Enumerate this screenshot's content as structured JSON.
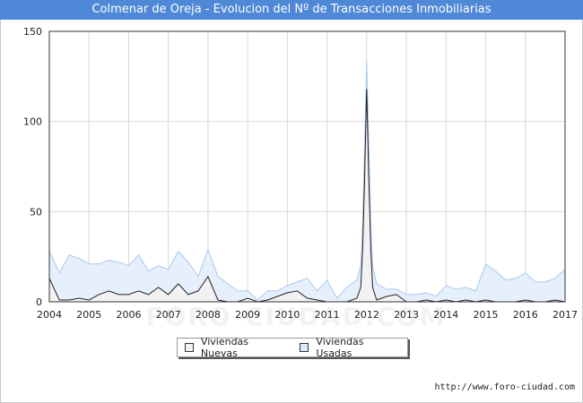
{
  "title": "Colmenar de Oreja - Evolucion del Nº de Transacciones Inmobiliarias",
  "footer": "http://www.foro-ciudad.com",
  "watermark": "FORO-CIUDAD.COM",
  "colors": {
    "title_bar": "#4f88d6",
    "nuevas_fill": "#f2f2f2",
    "nuevas_line": "#222222",
    "usadas_fill": "#e6f0fd",
    "usadas_line": "#a9c9ee",
    "grid": "#d9d9d9"
  },
  "legend": [
    {
      "label": "Viviendas Nuevas",
      "color": "#f2f2f2"
    },
    {
      "label": "Viviendas Usadas",
      "color": "#dfeafb"
    }
  ],
  "chart_data": {
    "type": "area",
    "title": "Colmenar de Oreja - Evolucion del Nº de Transacciones Inmobiliarias",
    "x_ticks": [
      "2004",
      "2005",
      "2006",
      "2007",
      "2008",
      "2009",
      "2010",
      "2011",
      "2012",
      "2013",
      "2014",
      "2015",
      "2016",
      "2017"
    ],
    "y_ticks": [
      "0",
      "50",
      "100",
      "150"
    ],
    "xlim": [
      2004,
      2017
    ],
    "ylim": [
      0,
      150
    ],
    "grid": true,
    "legend_position": "bottom",
    "x": [
      2004.0,
      2004.25,
      2004.5,
      2004.75,
      2005.0,
      2005.25,
      2005.5,
      2005.75,
      2006.0,
      2006.25,
      2006.5,
      2006.75,
      2007.0,
      2007.25,
      2007.5,
      2007.75,
      2008.0,
      2008.25,
      2008.5,
      2008.75,
      2009.0,
      2009.25,
      2009.5,
      2009.75,
      2010.0,
      2010.25,
      2010.5,
      2010.75,
      2011.0,
      2011.25,
      2011.5,
      2011.75,
      2011.85,
      2011.9,
      2011.95,
      2012.0,
      2012.05,
      2012.1,
      2012.15,
      2012.25,
      2012.5,
      2012.75,
      2013.0,
      2013.25,
      2013.5,
      2013.75,
      2014.0,
      2014.25,
      2014.5,
      2014.75,
      2015.0,
      2015.25,
      2015.5,
      2015.75,
      2016.0,
      2016.25,
      2016.5,
      2016.75,
      2017.0
    ],
    "series": [
      {
        "name": "Viviendas Nuevas",
        "values": [
          13,
          1,
          1,
          2,
          1,
          4,
          6,
          4,
          4,
          6,
          4,
          8,
          4,
          10,
          4,
          6,
          14,
          1,
          0,
          0,
          2,
          0,
          1,
          3,
          5,
          6,
          2,
          1,
          0,
          0,
          0,
          2,
          8,
          30,
          70,
          118,
          70,
          30,
          8,
          1,
          3,
          4,
          0,
          0,
          1,
          0,
          1,
          0,
          1,
          0,
          1,
          0,
          0,
          0,
          1,
          0,
          0,
          1,
          0
        ]
      },
      {
        "name": "Viviendas Usadas",
        "values": [
          28,
          16,
          26,
          24,
          21,
          21,
          23,
          22,
          20,
          26,
          17,
          20,
          18,
          28,
          22,
          14,
          29,
          14,
          10,
          6,
          6,
          1,
          6,
          6,
          9,
          11,
          13,
          6,
          12,
          2,
          8,
          12,
          20,
          45,
          90,
          133,
          90,
          45,
          20,
          10,
          7,
          7,
          4,
          4,
          5,
          3,
          9,
          7,
          8,
          6,
          21,
          17,
          12,
          13,
          16,
          11,
          11,
          13,
          18
        ]
      }
    ]
  }
}
